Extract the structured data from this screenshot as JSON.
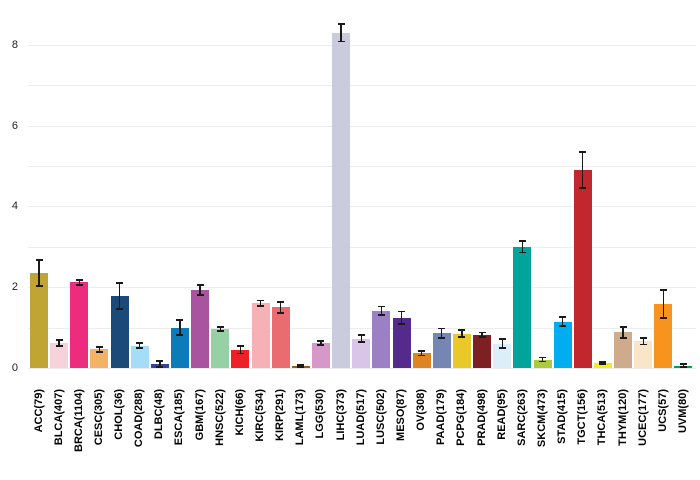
{
  "chart_data": {
    "type": "bar",
    "title": "",
    "xlabel": "",
    "ylabel": "",
    "ylim": [
      0,
      9
    ],
    "yticks": [
      0,
      2,
      4,
      6,
      8
    ],
    "grid": true,
    "legend": "none",
    "error_bars": true,
    "error_bar_color": "#1a1a1a",
    "gridline_color": "#ededed",
    "categories": [
      "ACC(79)",
      "BLCA(407)",
      "BRCA(1104)",
      "CESC(305)",
      "CHOL(36)",
      "COAD(288)",
      "DLBC(48)",
      "ESCA(185)",
      "GBM(167)",
      "HNSC(522)",
      "KICH(66)",
      "KIRC(534)",
      "KIRP(291)",
      "LAML(173)",
      "LGG(530)",
      "LIHC(373)",
      "LUAD(517)",
      "LUSC(502)",
      "MESO(87)",
      "OV(308)",
      "PAAD(179)",
      "PCPG(184)",
      "PRAD(498)",
      "READ(95)",
      "SARC(263)",
      "SKCM(473)",
      "STAD(415)",
      "TGCT(156)",
      "THCA(513)",
      "THYM(120)",
      "UCEC(177)",
      "UCS(57)",
      "UVM(80)"
    ],
    "values": [
      2.35,
      0.62,
      2.12,
      0.46,
      1.78,
      0.55,
      0.1,
      1.0,
      1.93,
      0.97,
      0.45,
      1.6,
      1.5,
      0.05,
      0.61,
      8.3,
      0.73,
      1.42,
      1.24,
      0.37,
      0.86,
      0.85,
      0.82,
      0.6,
      3.0,
      0.21,
      1.15,
      4.9,
      0.12,
      0.88,
      0.66,
      1.58,
      0.06
    ],
    "errors": [
      0.32,
      0.08,
      0.06,
      0.06,
      0.32,
      0.06,
      0.07,
      0.18,
      0.13,
      0.05,
      0.09,
      0.07,
      0.13,
      0.03,
      0.05,
      0.22,
      0.09,
      0.1,
      0.16,
      0.06,
      0.12,
      0.09,
      0.06,
      0.11,
      0.14,
      0.05,
      0.11,
      0.45,
      0.03,
      0.14,
      0.08,
      0.35,
      0.03
    ],
    "colors": [
      "#c0a434",
      "#f8d2db",
      "#ee2c7d",
      "#f3b367",
      "#1b4a78",
      "#a5dcf8",
      "#33439c",
      "#0b7cb7",
      "#a8549f",
      "#97d0a4",
      "#ec2026",
      "#f5b1b5",
      "#e96c70",
      "#91621f",
      "#d697c9",
      "#cacbdc",
      "#d8c5e8",
      "#9c80c4",
      "#552a8d",
      "#dd861f",
      "#7386b4",
      "#e9c827",
      "#7c2023",
      "#dceef9",
      "#00a49a",
      "#adc93e",
      "#00aeef",
      "#c2272e",
      "#f6e923",
      "#cfab8b",
      "#fae5c9",
      "#f7941e",
      "#00a552"
    ]
  }
}
